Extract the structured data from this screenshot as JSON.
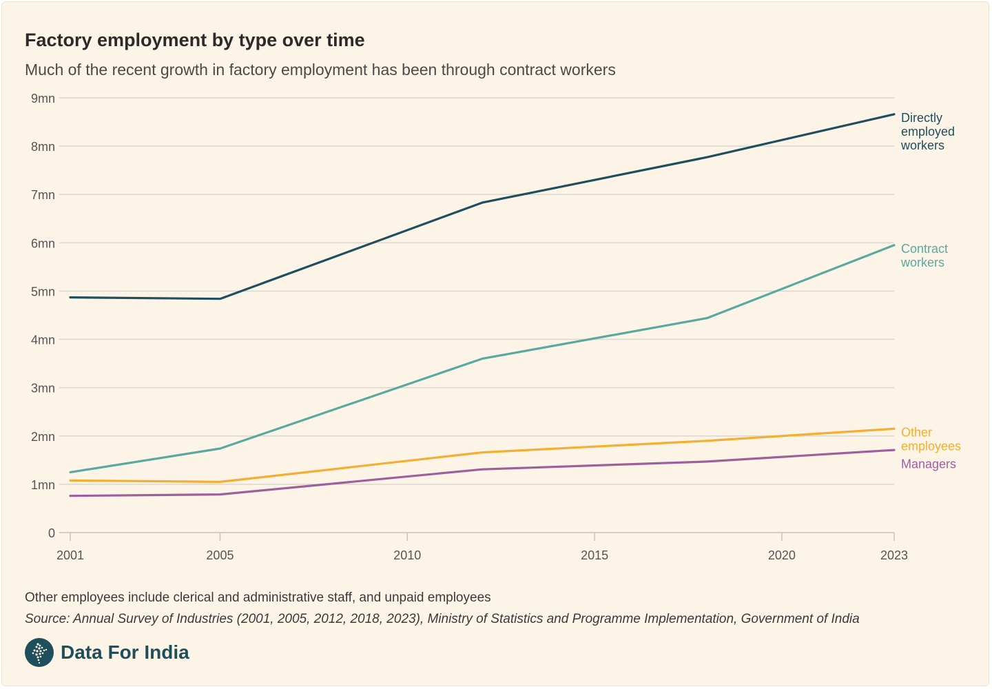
{
  "header": {
    "title": "Factory employment by type over time",
    "subtitle": "Much of the recent growth in factory employment has been through contract workers"
  },
  "footer": {
    "note": "Other employees include clerical and administrative staff, and unpaid employees",
    "source": "Source: Annual Survey of Industries (2001, 2005, 2012, 2018, 2023), Ministry of Statistics and Programme Implementation, Government of India",
    "brand": "Data For India"
  },
  "chart_data": {
    "type": "line",
    "title": "Factory employment by type over time",
    "subtitle": "Much of the recent growth in factory employment has been through contract workers",
    "xlabel": "",
    "ylabel": "",
    "xlim": [
      2001,
      2023
    ],
    "ylim": [
      0,
      9
    ],
    "x_ticks": [
      {
        "value": 2001,
        "label": "2001"
      },
      {
        "value": 2005,
        "label": "2005"
      },
      {
        "value": 2010,
        "label": "2010"
      },
      {
        "value": 2015,
        "label": "2015"
      },
      {
        "value": 2020,
        "label": "2020"
      },
      {
        "value": 2023,
        "label": "2023"
      }
    ],
    "y_ticks": [
      {
        "value": 0,
        "label": "0"
      },
      {
        "value": 1,
        "label": "1mn"
      },
      {
        "value": 2,
        "label": "2mn"
      },
      {
        "value": 3,
        "label": "3mn"
      },
      {
        "value": 4,
        "label": "4mn"
      },
      {
        "value": 5,
        "label": "5mn"
      },
      {
        "value": 6,
        "label": "6mn"
      },
      {
        "value": 7,
        "label": "7mn"
      },
      {
        "value": 8,
        "label": "8mn"
      },
      {
        "value": 9,
        "label": "9mn"
      }
    ],
    "grid": true,
    "legend": "direct labels at line ends",
    "x": [
      2001,
      2005,
      2012,
      2018,
      2023
    ],
    "series": [
      {
        "name": "Directly employed workers",
        "label_lines": [
          "Directly",
          "employed",
          "workers"
        ],
        "color": "#1f4e5f",
        "values": [
          4.87,
          4.84,
          6.83,
          7.77,
          8.66
        ]
      },
      {
        "name": "Contract workers",
        "label_lines": [
          "Contract",
          "workers"
        ],
        "color": "#5aa9a0",
        "values": [
          1.25,
          1.74,
          3.6,
          4.44,
          5.95
        ]
      },
      {
        "name": "Other employees",
        "label_lines": [
          "Other",
          "employees"
        ],
        "color": "#f5ae32",
        "values": [
          1.08,
          1.05,
          1.66,
          1.9,
          2.15
        ]
      },
      {
        "name": "Managers",
        "label_lines": [
          "Managers"
        ],
        "color": "#9e5f9c",
        "values": [
          0.76,
          0.79,
          1.31,
          1.47,
          1.71
        ]
      }
    ]
  }
}
